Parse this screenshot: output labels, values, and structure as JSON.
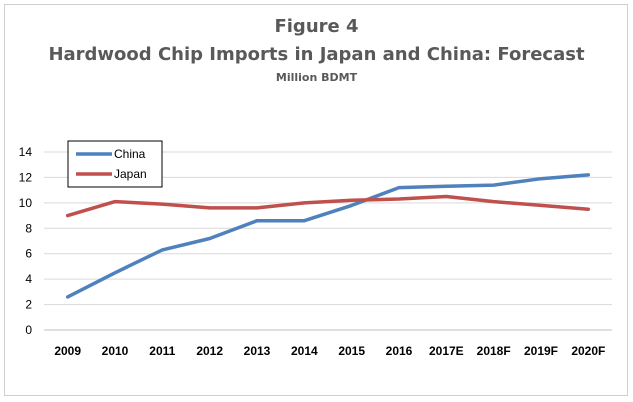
{
  "chart_data": {
    "type": "line",
    "title": "Figure 4",
    "subtitle": "Hardwood Chip Imports in Japan and China: Forecast",
    "unit_label": "Million BDMT",
    "categories": [
      "2009",
      "2010",
      "2011",
      "2012",
      "2013",
      "2014",
      "2015",
      "2016",
      "2017E",
      "2018F",
      "2019F",
      "2020F"
    ],
    "ylim": [
      0,
      14
    ],
    "yticks": [
      0,
      2,
      4,
      6,
      8,
      10,
      12,
      14
    ],
    "grid": true,
    "legend_position": "top-left",
    "series": [
      {
        "name": "China",
        "color": "#4f81bd",
        "values": [
          2.6,
          4.5,
          6.3,
          7.2,
          8.6,
          8.6,
          9.8,
          11.2,
          11.3,
          11.4,
          11.9,
          12.2
        ]
      },
      {
        "name": "Japan",
        "color": "#c0504d",
        "values": [
          9.0,
          10.1,
          9.9,
          9.6,
          9.6,
          10.0,
          10.2,
          10.3,
          10.5,
          10.1,
          9.8,
          9.5
        ]
      }
    ]
  }
}
